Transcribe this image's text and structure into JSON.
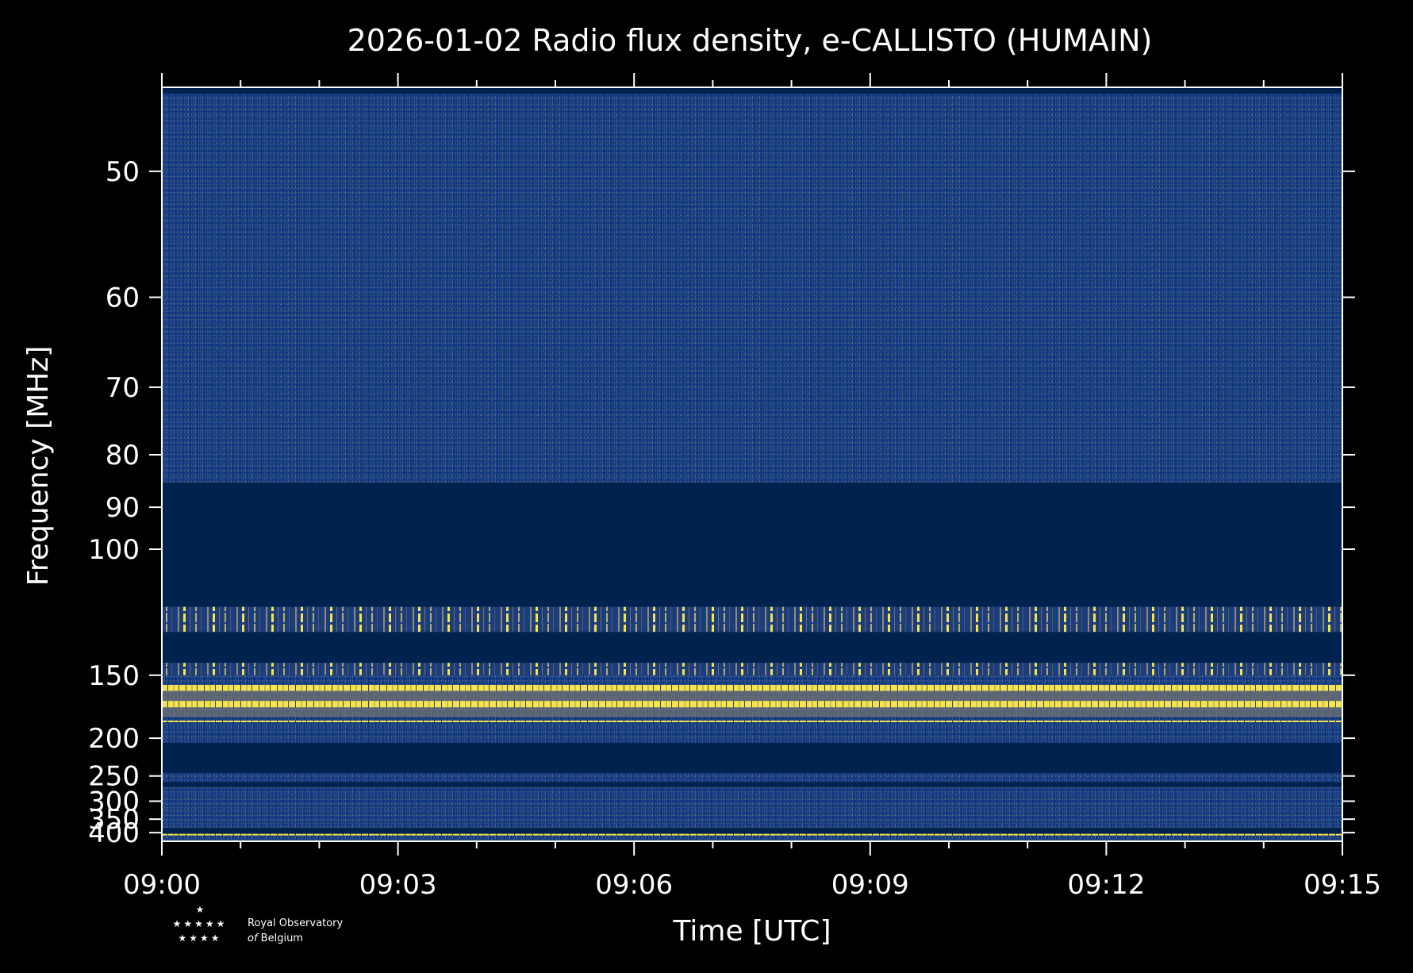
{
  "chart_data": {
    "type": "heatmap",
    "title": "2026-01-02 Radio flux density, e-CALLISTO (HUMAIN)",
    "xlabel": "Time [UTC]",
    "ylabel": "Frequency [MHz]",
    "x_ticks": [
      "09:00",
      "09:03",
      "09:06",
      "09:09",
      "09:12",
      "09:15"
    ],
    "x_range_minutes": [
      0,
      15
    ],
    "y_scale": "reciprocal",
    "y_range_mhz": [
      45,
      440
    ],
    "y_ticks": [
      50,
      60,
      70,
      80,
      90,
      100,
      150,
      200,
      250,
      300,
      350,
      400
    ],
    "colormap": "cividis",
    "colors": {
      "background": "#000000",
      "masked": "#00224e",
      "low": "#0f3a86",
      "mid": "#7c7b78",
      "high": "#f5e44b"
    },
    "masked_bands_mhz": [
      [
        85,
        118
      ],
      [
        128,
        143
      ],
      [
        205,
        245
      ],
      [
        260,
        270
      ],
      [
        380,
        405
      ]
    ],
    "features": [
      {
        "freq_mhz": [
          156,
          160
        ],
        "level": "high",
        "extent_min": [
          0,
          15
        ]
      },
      {
        "freq_mhz": [
          167,
          172
        ],
        "level": "high",
        "extent_min": [
          0,
          15
        ]
      },
      {
        "freq_mhz": [
          183,
          184
        ],
        "level": "high",
        "extent_min": [
          0,
          15
        ]
      },
      {
        "freq_mhz": [
          405,
          407
        ],
        "level": "high",
        "extent_min": [
          0,
          15
        ]
      },
      {
        "freq_mhz": [
          118,
          128
        ],
        "level": "intermittent bursts",
        "extent_min": [
          0,
          15
        ]
      },
      {
        "freq_mhz": [
          143,
          150
        ],
        "level": "intermittent bursts",
        "extent_min": [
          0,
          15
        ]
      }
    ]
  },
  "logo": {
    "line1": "Royal Observatory",
    "line2_italic": "of",
    "line2": "Belgium"
  }
}
